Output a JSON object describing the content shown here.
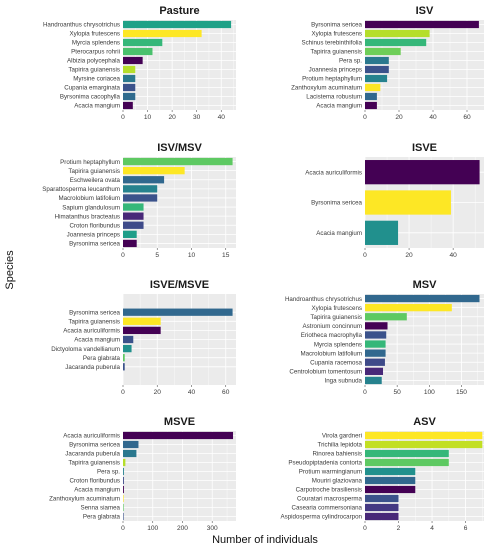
{
  "figure": {
    "xlabel": "Number of individuals",
    "ylabel": "Species",
    "panel_background": "#ebebeb",
    "grid_color": "#ffffff"
  },
  "chart_data": [
    {
      "type": "bar",
      "title": "Pasture",
      "xlim": [
        0,
        46
      ],
      "xticks": [
        0,
        10,
        20,
        30,
        40
      ],
      "categories": [
        "Handroanthus chrysotrichus",
        "Xylopia frutescens",
        "Myrcia splendens",
        "Pterocarpus rohrii",
        "Albizia polycephala",
        "Tapirira guianensis",
        "Myrsine coriacea",
        "Cupania emarginata",
        "Byrsonima cacophylla",
        "Acacia mangium"
      ],
      "values": [
        44,
        32,
        16,
        12,
        8,
        5,
        5,
        5,
        5,
        4
      ],
      "colors": [
        "#1fa187",
        "#fde725",
        "#35b779",
        "#4ac16d",
        "#440154",
        "#b5de2b",
        "#2a788e",
        "#3b528b",
        "#2f6b8e",
        "#440154"
      ]
    },
    {
      "type": "bar",
      "title": "ISV",
      "xlim": [
        0,
        70
      ],
      "xticks": [
        0,
        20,
        40,
        60
      ],
      "categories": [
        "Byrsonima sericea",
        "Xylopia frutescens",
        "Schinus terebinthifolia",
        "Tapirira guianensis",
        "Pera sp.",
        "Joannesia princeps",
        "Protium heptaphyllum",
        "Zanthoxylum acuminatum",
        "Lacistema robustum",
        "Acacia mangium"
      ],
      "values": [
        67,
        38,
        36,
        21,
        14,
        14,
        13,
        9,
        7,
        7
      ],
      "colors": [
        "#440154",
        "#b5de2b",
        "#35b779",
        "#6ece58",
        "#2a788e",
        "#3b528b",
        "#26828e",
        "#fde725",
        "#31688e",
        "#440154"
      ]
    },
    {
      "type": "bar",
      "title": "ISV/MSV",
      "xlim": [
        0,
        16.5
      ],
      "xticks": [
        0,
        5,
        10,
        15
      ],
      "categories": [
        "Protium heptaphyllum",
        "Tapirira guianensis",
        "Eschweilera ovata",
        "Sparattosperma leucanthum",
        "Macrolobium latifolium",
        "Sapium glandulosum",
        "Himatanthus bracteatus",
        "Croton floribundus",
        "Joannesia princeps",
        "Byrsonima sericea"
      ],
      "values": [
        16,
        9,
        6,
        5,
        5,
        3,
        3,
        3,
        2,
        2
      ],
      "colors": [
        "#5ec962",
        "#fde725",
        "#31688e",
        "#26828e",
        "#3b528b",
        "#35b779",
        "#482878",
        "#3e4a89",
        "#1f9e89",
        "#440154"
      ]
    },
    {
      "type": "bar",
      "title": "ISVE",
      "xlim": [
        0,
        54
      ],
      "xticks": [
        0,
        20,
        40
      ],
      "categories": [
        "Acacia auriculiformis",
        "Byrsonima sericea",
        "Acacia mangium"
      ],
      "values": [
        52,
        39,
        15
      ],
      "colors": [
        "#440154",
        "#fde725",
        "#21908d"
      ]
    },
    {
      "type": "bar",
      "title": "ISVE/MSVE",
      "xlim": [
        0,
        66
      ],
      "xticks": [
        0,
        20,
        40,
        60
      ],
      "categories": [
        "Byrsonima sericea",
        "Tapirira guianensis",
        "Acacia auriculiformis",
        "Acacia mangium",
        "Dictyoloma vandellianum",
        "Pera glabrata",
        "Jacaranda puberula"
      ],
      "values": [
        64,
        22,
        22,
        6,
        5,
        1,
        1
      ],
      "colors": [
        "#31688e",
        "#fde725",
        "#440154",
        "#3b528b",
        "#21908d",
        "#5ec962",
        "#3b528b"
      ]
    },
    {
      "type": "bar",
      "title": "MSV",
      "xlim": [
        0,
        185
      ],
      "xticks": [
        0,
        50,
        100,
        150
      ],
      "categories": [
        "Handroanthus chrysotrichus",
        "Xylopia frutescens",
        "Tapirira guianensis",
        "Astronium concinnum",
        "Eriotheca macrophylla",
        "Myrcia splendens",
        "Macrolobium latifolium",
        "Cupania racemosa",
        "Centrolobium tomentosum",
        "Inga subnuda"
      ],
      "values": [
        178,
        135,
        65,
        35,
        33,
        32,
        32,
        31,
        28,
        26
      ],
      "colors": [
        "#31688e",
        "#fde725",
        "#5ec962",
        "#440154",
        "#3b528b",
        "#35b779",
        "#31688e",
        "#3e4a89",
        "#482878",
        "#26828e"
      ]
    },
    {
      "type": "bar",
      "title": "MSVE",
      "xlim": [
        0,
        380
      ],
      "xticks": [
        0,
        100,
        200,
        300
      ],
      "categories": [
        "Acacia auriculiformis",
        "Byrsonima sericea",
        "Jacaranda puberula",
        "Tapirira guianensis",
        "Pera sp.",
        "Croton floribundus",
        "Acacia mangium",
        "Zanthoxylum acuminatum",
        "Senna siamea",
        "Pera glabrata"
      ],
      "values": [
        370,
        52,
        45,
        8,
        3,
        3,
        3,
        2,
        1,
        1
      ],
      "colors": [
        "#440154",
        "#31688e",
        "#2a788e",
        "#b5de2b",
        "#26828e",
        "#3e4a89",
        "#440154",
        "#fde725",
        "#5ec962",
        "#3b528b"
      ]
    },
    {
      "type": "bar",
      "title": "ASV",
      "xlim": [
        0,
        7.1
      ],
      "xticks": [
        0,
        2,
        4,
        6
      ],
      "categories": [
        "Virola gardneri",
        "Trichilia lepidota",
        "Rinorea bahiensis",
        "Pseudopiptadenia contorta",
        "Protium warmingianum",
        "Mouriri glaziovana",
        "Carpotroche brasiliensis",
        "Couratari macrosperma",
        "Casearia commersoniana",
        "Aspidosperma cylindrocarpon"
      ],
      "values": [
        7,
        7,
        5,
        5,
        3,
        3,
        3,
        2,
        2,
        2
      ],
      "colors": [
        "#fde725",
        "#c2df23",
        "#35b779",
        "#5ec962",
        "#21908d",
        "#31688e",
        "#440154",
        "#3b528b",
        "#443983",
        "#482878"
      ]
    }
  ]
}
